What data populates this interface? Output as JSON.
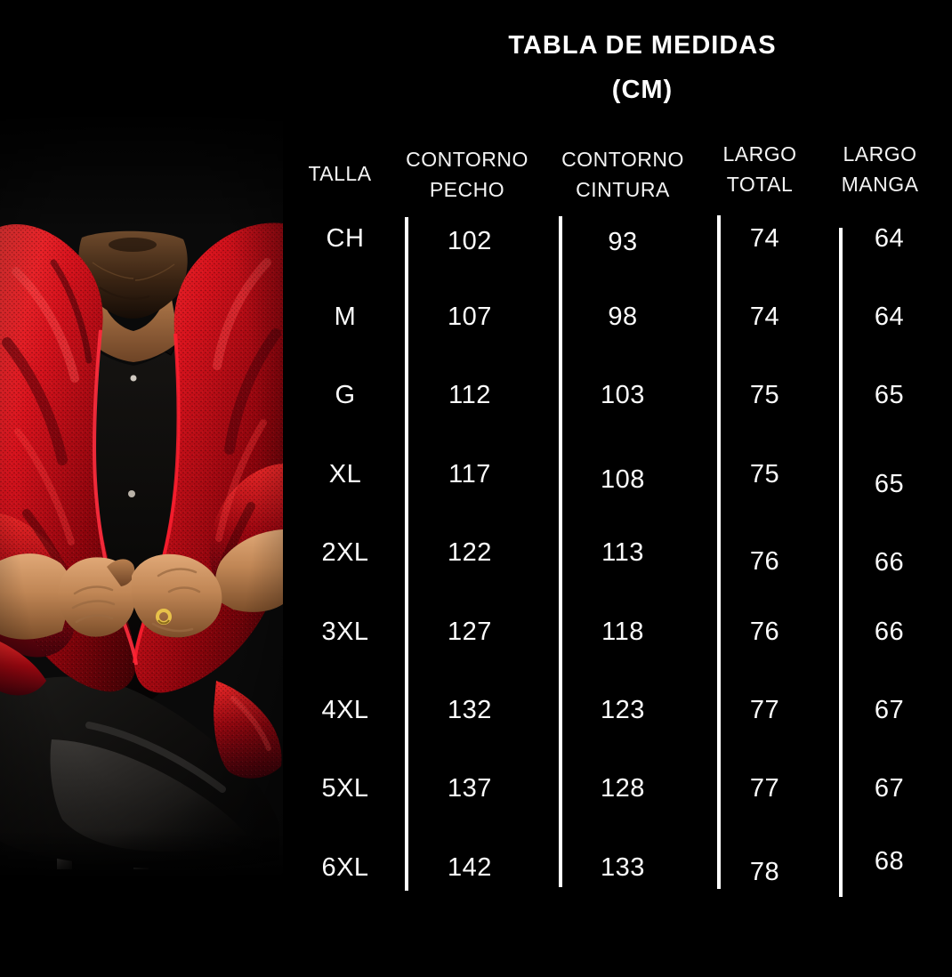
{
  "colors": {
    "background": "#000000",
    "text": "#ffffff",
    "divider": "#ffffff",
    "jacket_red": "#c8101d"
  },
  "title": {
    "line1": "TABLA DE MEDIDAS",
    "line2": "(CM)"
  },
  "table": {
    "columns": [
      {
        "id": "talla",
        "label_lines": [
          "TALLA"
        ]
      },
      {
        "id": "contorno_pecho",
        "label_lines": [
          "CONTORNO",
          "PECHO"
        ]
      },
      {
        "id": "contorno_cintura",
        "label_lines": [
          "CONTORNO",
          "CINTURA"
        ]
      },
      {
        "id": "largo_total",
        "label_lines": [
          "LARGO",
          "TOTAL"
        ]
      },
      {
        "id": "largo_manga",
        "label_lines": [
          "LARGO",
          "MANGA"
        ]
      }
    ],
    "rows": [
      {
        "talla": "CH",
        "contorno_pecho": "102",
        "contorno_cintura": "93",
        "largo_total": "74",
        "largo_manga": "64"
      },
      {
        "talla": "M",
        "contorno_pecho": "107",
        "contorno_cintura": "98",
        "largo_total": "74",
        "largo_manga": "64"
      },
      {
        "talla": "G",
        "contorno_pecho": "112",
        "contorno_cintura": "103",
        "largo_total": "75",
        "largo_manga": "65"
      },
      {
        "talla": "XL",
        "contorno_pecho": "117",
        "contorno_cintura": "108",
        "largo_total": "75",
        "largo_manga": "65"
      },
      {
        "talla": "2XL",
        "contorno_pecho": "122",
        "contorno_cintura": "113",
        "largo_total": "76",
        "largo_manga": "66"
      },
      {
        "talla": "3XL",
        "contorno_pecho": "127",
        "contorno_cintura": "118",
        "largo_total": "76",
        "largo_manga": "66"
      },
      {
        "talla": "4XL",
        "contorno_pecho": "132",
        "contorno_cintura": "123",
        "largo_total": "77",
        "largo_manga": "67"
      },
      {
        "talla": "5XL",
        "contorno_pecho": "137",
        "contorno_cintura": "128",
        "largo_total": "77",
        "largo_manga": "67"
      },
      {
        "talla": "6XL",
        "contorno_pecho": "142",
        "contorno_cintura": "133",
        "largo_total": "78",
        "largo_manga": "68"
      }
    ]
  }
}
